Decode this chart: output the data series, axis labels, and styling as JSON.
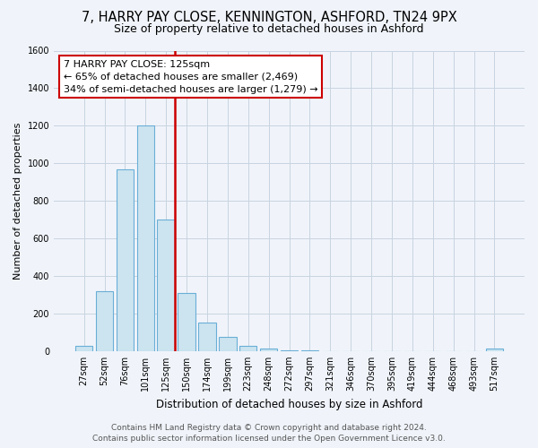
{
  "title": "7, HARRY PAY CLOSE, KENNINGTON, ASHFORD, TN24 9PX",
  "subtitle": "Size of property relative to detached houses in Ashford",
  "xlabel": "Distribution of detached houses by size in Ashford",
  "ylabel": "Number of detached properties",
  "bar_labels": [
    "27sqm",
    "52sqm",
    "76sqm",
    "101sqm",
    "125sqm",
    "150sqm",
    "174sqm",
    "199sqm",
    "223sqm",
    "248sqm",
    "272sqm",
    "297sqm",
    "321sqm",
    "346sqm",
    "370sqm",
    "395sqm",
    "419sqm",
    "444sqm",
    "468sqm",
    "493sqm",
    "517sqm"
  ],
  "bar_values": [
    30,
    320,
    970,
    1200,
    700,
    310,
    150,
    75,
    30,
    15,
    5,
    2,
    0,
    0,
    0,
    0,
    0,
    0,
    0,
    0,
    15
  ],
  "bar_color": "#cce4f0",
  "bar_edge_color": "#6aaed6",
  "highlight_line_index": 4,
  "highlight_line_color": "#cc0000",
  "ylim": [
    0,
    1600
  ],
  "yticks": [
    0,
    200,
    400,
    600,
    800,
    1000,
    1200,
    1400,
    1600
  ],
  "annotation_title": "7 HARRY PAY CLOSE: 125sqm",
  "annotation_line1": "← 65% of detached houses are smaller (2,469)",
  "annotation_line2": "34% of semi-detached houses are larger (1,279) →",
  "annotation_box_color": "#ffffff",
  "annotation_box_edge": "#cc0000",
  "footer_line1": "Contains HM Land Registry data © Crown copyright and database right 2024.",
  "footer_line2": "Contains public sector information licensed under the Open Government Licence v3.0.",
  "background_color": "#f0f4fa",
  "plot_background_color": "#f0f4fa",
  "grid_color": "#c8d4e0",
  "title_fontsize": 10.5,
  "subtitle_fontsize": 9,
  "xlabel_fontsize": 8.5,
  "ylabel_fontsize": 8,
  "tick_fontsize": 7,
  "annotation_fontsize": 8,
  "footer_fontsize": 6.5
}
